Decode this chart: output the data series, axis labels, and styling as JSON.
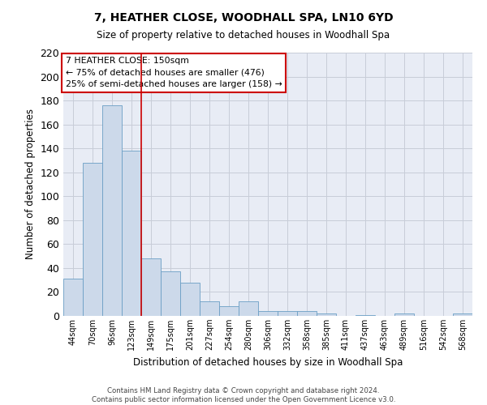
{
  "title": "7, HEATHER CLOSE, WOODHALL SPA, LN10 6YD",
  "subtitle": "Size of property relative to detached houses in Woodhall Spa",
  "xlabel": "Distribution of detached houses by size in Woodhall Spa",
  "ylabel": "Number of detached properties",
  "footer_line1": "Contains HM Land Registry data © Crown copyright and database right 2024.",
  "footer_line2": "Contains public sector information licensed under the Open Government Licence v3.0.",
  "categories": [
    "44sqm",
    "70sqm",
    "96sqm",
    "123sqm",
    "149sqm",
    "175sqm",
    "201sqm",
    "227sqm",
    "254sqm",
    "280sqm",
    "306sqm",
    "332sqm",
    "358sqm",
    "385sqm",
    "411sqm",
    "437sqm",
    "463sqm",
    "489sqm",
    "516sqm",
    "542sqm",
    "568sqm"
  ],
  "values": [
    31,
    128,
    176,
    138,
    48,
    37,
    28,
    12,
    8,
    12,
    4,
    4,
    4,
    2,
    0,
    1,
    0,
    2,
    0,
    0,
    2
  ],
  "bar_color": "#ccd9ea",
  "bar_edge_color": "#6a9ec5",
  "grid_color": "#c8cdd8",
  "background_color": "#e8ecf5",
  "annotation_text": "7 HEATHER CLOSE: 150sqm\n← 75% of detached houses are smaller (476)\n25% of semi-detached houses are larger (158) →",
  "annotation_box_color": "white",
  "annotation_box_edge": "#cc0000",
  "vline_color": "#cc0000",
  "vline_x": 3.5,
  "ylim": [
    0,
    220
  ],
  "yticks": [
    0,
    20,
    40,
    60,
    80,
    100,
    120,
    140,
    160,
    180,
    200,
    220
  ]
}
